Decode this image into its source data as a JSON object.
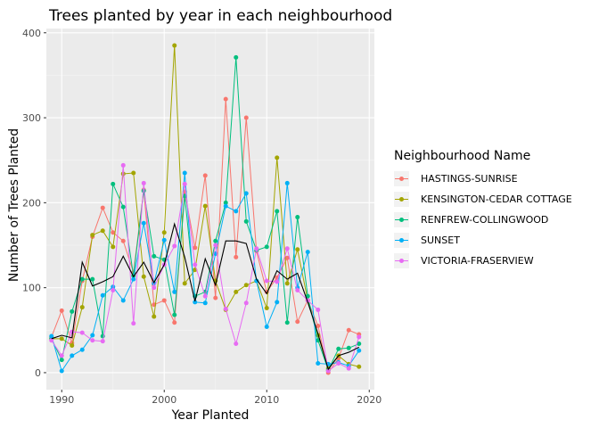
{
  "chart_data": {
    "type": "line",
    "title": "Trees planted by year in each neighbourhood",
    "xlabel": "Year Planted",
    "ylabel": "Number of Trees Planted",
    "xlim": [
      1988.5,
      2020.5
    ],
    "ylim": [
      -20,
      405
    ],
    "x_ticks": [
      1990,
      2000,
      2010,
      2020
    ],
    "y_ticks": [
      0,
      100,
      200,
      300,
      400
    ],
    "grid": true,
    "legend": {
      "title": "Neighbourhood Name",
      "position": "right"
    },
    "x": [
      1989,
      1990,
      1991,
      1992,
      1993,
      1994,
      1995,
      1996,
      1997,
      1998,
      1999,
      2000,
      2001,
      2002,
      2003,
      2004,
      2005,
      2006,
      2007,
      2008,
      2009,
      2010,
      2011,
      2012,
      2013,
      2014,
      2015,
      2016,
      2017,
      2018,
      2019
    ],
    "series": [
      {
        "name": "HASTINGS-SUNRISE",
        "color": "#F8766D",
        "values": [
          42,
          73,
          35,
          108,
          160,
          194,
          165,
          155,
          118,
          215,
          80,
          85,
          59,
          213,
          147,
          232,
          88,
          322,
          136,
          300,
          143,
          95,
          112,
          135,
          60,
          85,
          55,
          0,
          17,
          50,
          45
        ]
      },
      {
        "name": "KENSINGTON-CEDAR COTTAGE",
        "color": "#A3A500",
        "values": [
          40,
          40,
          32,
          77,
          162,
          167,
          148,
          234,
          235,
          113,
          66,
          165,
          385,
          105,
          121,
          196,
          108,
          74,
          95,
          103,
          108,
          76,
          253,
          105,
          145,
          85,
          44,
          5,
          20,
          10,
          7
        ]
      },
      {
        "name": "RENFREW-COLLINGWOOD",
        "color": "#00BF7D",
        "values": [
          40,
          15,
          72,
          110,
          110,
          43,
          222,
          195,
          114,
          214,
          137,
          133,
          68,
          208,
          90,
          95,
          155,
          200,
          371,
          178,
          144,
          148,
          190,
          59,
          183,
          90,
          38,
          3,
          28,
          29,
          34
        ]
      },
      {
        "name": "SUNSET",
        "color": "#00B0F6",
        "values": [
          43,
          2,
          20,
          27,
          44,
          91,
          101,
          85,
          110,
          176,
          105,
          156,
          95,
          235,
          83,
          82,
          140,
          196,
          190,
          211,
          108,
          54,
          83,
          223,
          100,
          142,
          11,
          10,
          12,
          8,
          26
        ]
      },
      {
        "name": "VICTORIA-FRASERVIEW",
        "color": "#E76BF3",
        "values": [
          38,
          20,
          48,
          47,
          38,
          37,
          97,
          244,
          58,
          223,
          100,
          127,
          149,
          222,
          127,
          90,
          150,
          75,
          34,
          82,
          146,
          108,
          107,
          146,
          97,
          85,
          74,
          2,
          11,
          5,
          42
        ]
      }
    ],
    "average_line": {
      "color": "#000000",
      "values": [
        40,
        44,
        41,
        130,
        102,
        107,
        113,
        137,
        113,
        130,
        106,
        127,
        175,
        136,
        84,
        134,
        103,
        155,
        155,
        152,
        110,
        93,
        120,
        110,
        117,
        83,
        46,
        4,
        20,
        24,
        30
      ]
    }
  }
}
